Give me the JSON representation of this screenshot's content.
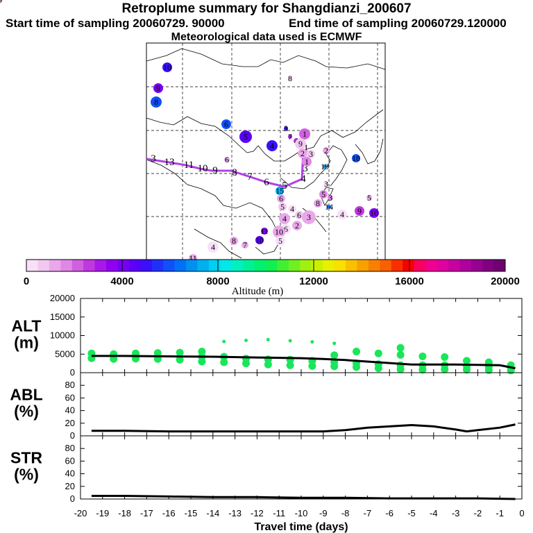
{
  "header": {
    "title": "Retroplume summary for Shangdianzi_200607",
    "start_label": "Start time of sampling 20060729. 90000",
    "end_label": "End time of sampling 20060729.120000",
    "met_label": "Meteorological data used is ECMWF"
  },
  "colorbar": {
    "ticks": [
      "0",
      "4000",
      "8000",
      "12000",
      "16000",
      "20000"
    ],
    "label": "Altitude (m)",
    "colors": [
      "#f8e0f8",
      "#f2c8f0",
      "#eaa8ea",
      "#e088e6",
      "#d060e0",
      "#c038e0",
      "#a818e8",
      "#9000f0",
      "#7800f0",
      "#5a00f8",
      "#3a10f8",
      "#2030f8",
      "#1050f8",
      "#0070f8",
      "#0090f0",
      "#00b0f0",
      "#00d0f0",
      "#00e8e8",
      "#00f0c0",
      "#00f098",
      "#00f070",
      "#10f050",
      "#40f030",
      "#70f020",
      "#a0f010",
      "#c8f000",
      "#e8f000",
      "#f8e000",
      "#f8c000",
      "#f8a000",
      "#f88000",
      "#f86000",
      "#f83000",
      "#f80000",
      "#f80060",
      "#f00090",
      "#e000a0",
      "#c800a0",
      "#b000a0",
      "#980090",
      "#800080",
      "#700070"
    ]
  },
  "map": {
    "trajectory_labels": [
      "3",
      "13",
      "11",
      "10",
      "9",
      "8",
      "7",
      "6",
      "5",
      "4",
      "3",
      "2",
      "1"
    ],
    "cluster_labels": [
      {
        "t": "10",
        "c": "#3a10f8"
      },
      {
        "t": "9",
        "c": "#7800f0"
      },
      {
        "t": "8",
        "c": "#1050f8"
      },
      {
        "t": "6",
        "c": "#1050f8"
      },
      {
        "t": "5",
        "c": "#5a00f8"
      },
      {
        "t": "4",
        "c": "#3a10f8"
      },
      {
        "t": "3",
        "c": "#3a10f8"
      },
      {
        "t": "7",
        "c": "#a818e8"
      },
      {
        "t": "4",
        "c": "#c038e0"
      },
      {
        "t": "1",
        "c": "#d060e0"
      },
      {
        "t": "9",
        "c": "#f2c8f0"
      },
      {
        "t": "2",
        "c": "#eaa8ea"
      },
      {
        "t": "1",
        "c": "#e088e6"
      },
      {
        "t": "3",
        "c": "#f2c8f0"
      },
      {
        "t": "2",
        "c": "#eaa8ea"
      },
      {
        "t": "18",
        "c": "#1050f8"
      },
      {
        "t": "19",
        "c": "#0090f0"
      },
      {
        "t": "3",
        "c": "#f2c8f0"
      },
      {
        "t": "5",
        "c": "#e088e6"
      },
      {
        "t": "8",
        "c": "#eaa8ea"
      },
      {
        "t": "3",
        "c": "#e088e6"
      },
      {
        "t": "14",
        "c": "#0070f8"
      },
      {
        "t": "5",
        "c": "#eaa8ea"
      },
      {
        "t": "15",
        "c": "#00b0f0"
      },
      {
        "t": "6",
        "c": "#eaa8ea"
      },
      {
        "t": "5",
        "c": "#f2c8f0"
      },
      {
        "t": "4",
        "c": "#f8e0f8"
      },
      {
        "t": "6",
        "c": "#f2c8f0"
      },
      {
        "t": "2",
        "c": "#eaa8ea"
      },
      {
        "t": "3",
        "c": "#eaa8ea"
      },
      {
        "t": "4",
        "c": "#eaa8ea"
      },
      {
        "t": "6",
        "c": "#f8e0f8"
      },
      {
        "t": "4",
        "c": "#f8e0f8"
      },
      {
        "t": "9",
        "c": "#c038e0"
      },
      {
        "t": "10",
        "c": "#7800f0"
      },
      {
        "t": "11",
        "c": "#7800f0"
      },
      {
        "t": "10",
        "c": "#5a00f8"
      },
      {
        "t": "10",
        "c": "#eaa8ea"
      },
      {
        "t": "5",
        "c": "#f8e0f8"
      },
      {
        "t": "4",
        "c": "#f8e0f8"
      },
      {
        "t": "8",
        "c": "#eaa8ea"
      },
      {
        "t": "7",
        "c": "#eaa8ea"
      },
      {
        "t": "11",
        "c": "#eaa8ea"
      },
      {
        "t": "6",
        "c": "#eaa8ea"
      },
      {
        "t": "8",
        "c": "#f2c8f0"
      },
      {
        "t": "9",
        "c": "#f2c8f0"
      }
    ]
  },
  "chart_data": [
    {
      "type": "scatter",
      "panel": "ALT",
      "ylabel": "ALT\n(m)",
      "ylim": [
        0,
        20000
      ],
      "yticks": [
        "20000",
        "15000",
        "10000",
        "5000",
        "0"
      ],
      "xlim": [
        -20,
        0
      ],
      "median_line": {
        "x": [
          -19.5,
          -18,
          -16,
          -14,
          -12,
          -10,
          -9,
          -8,
          -7,
          -6,
          -5,
          -4,
          -3,
          -2,
          -1,
          -0.3
        ],
        "y": [
          4500,
          4500,
          4400,
          4300,
          4100,
          3900,
          3700,
          3400,
          3000,
          2600,
          2200,
          2200,
          2200,
          2100,
          2000,
          1200
        ]
      },
      "points": [
        {
          "x": -19.5,
          "y": [
            3900,
            5200
          ]
        },
        {
          "x": -18.5,
          "y": [
            3700,
            5000
          ]
        },
        {
          "x": -17.5,
          "y": [
            3800,
            5200
          ]
        },
        {
          "x": -16.5,
          "y": [
            3700,
            5300
          ]
        },
        {
          "x": -15.5,
          "y": [
            3500,
            5400
          ]
        },
        {
          "x": -14.5,
          "y": [
            3000,
            4300,
            5700
          ]
        },
        {
          "x": -13.5,
          "y": [
            2800,
            4300,
            8400
          ]
        },
        {
          "x": -12.5,
          "y": [
            2500,
            3800,
            8700
          ]
        },
        {
          "x": -11.5,
          "y": [
            2200,
            3600,
            8900
          ]
        },
        {
          "x": -10.5,
          "y": [
            2000,
            3500,
            8600
          ]
        },
        {
          "x": -9.5,
          "y": [
            1800,
            3200,
            8300
          ]
        },
        {
          "x": -8.5,
          "y": [
            1700,
            2800,
            4700,
            7900
          ]
        },
        {
          "x": -7.5,
          "y": [
            1500,
            2500,
            5700
          ]
        },
        {
          "x": -6.5,
          "y": [
            1200,
            2300,
            5200
          ]
        },
        {
          "x": -5.5,
          "y": [
            900,
            2000,
            4800,
            6700
          ]
        },
        {
          "x": -4.5,
          "y": [
            800,
            2000,
            4400
          ]
        },
        {
          "x": -3.5,
          "y": [
            900,
            2000,
            4200
          ]
        },
        {
          "x": -2.5,
          "y": [
            800,
            1800,
            3200
          ]
        },
        {
          "x": -1.5,
          "y": [
            700,
            1600,
            2800
          ]
        },
        {
          "x": -0.5,
          "y": [
            600,
            1300,
            2000
          ]
        }
      ]
    },
    {
      "type": "line",
      "panel": "ABL",
      "ylabel": "ABL\n(%)",
      "ylim": [
        0,
        100
      ],
      "yticks": [
        "80",
        "60",
        "40",
        "20",
        "0"
      ],
      "x": [
        -19.5,
        -18,
        -16,
        -14,
        -12,
        -10,
        -9,
        -8,
        -7,
        -6,
        -5,
        -4,
        -3,
        -2.5,
        -2,
        -1,
        -0.3
      ],
      "y": [
        8,
        8,
        7,
        7,
        7,
        7,
        7,
        9,
        13,
        15,
        17,
        15,
        10,
        7,
        9,
        13,
        18
      ]
    },
    {
      "type": "line",
      "panel": "STR",
      "ylabel": "STR\n(%)",
      "ylim": [
        0,
        100
      ],
      "yticks": [
        "80",
        "60",
        "40",
        "20",
        "0"
      ],
      "xlabel": "Travel time (days)",
      "xticks": [
        "-20",
        "-19",
        "-18",
        "-17",
        "-16",
        "-15",
        "-14",
        "-13",
        "-12",
        "-11",
        "-10",
        "-9",
        "-8",
        "-7",
        "-6",
        "-5",
        "-4",
        "-3",
        "-2",
        "-1",
        "0"
      ],
      "x": [
        -19.5,
        -18,
        -16,
        -14,
        -12,
        -10,
        -8,
        -6,
        -4,
        -2,
        -0.3
      ],
      "y": [
        5,
        5,
        4,
        3,
        3,
        2,
        2,
        1,
        1,
        1,
        0
      ]
    }
  ]
}
